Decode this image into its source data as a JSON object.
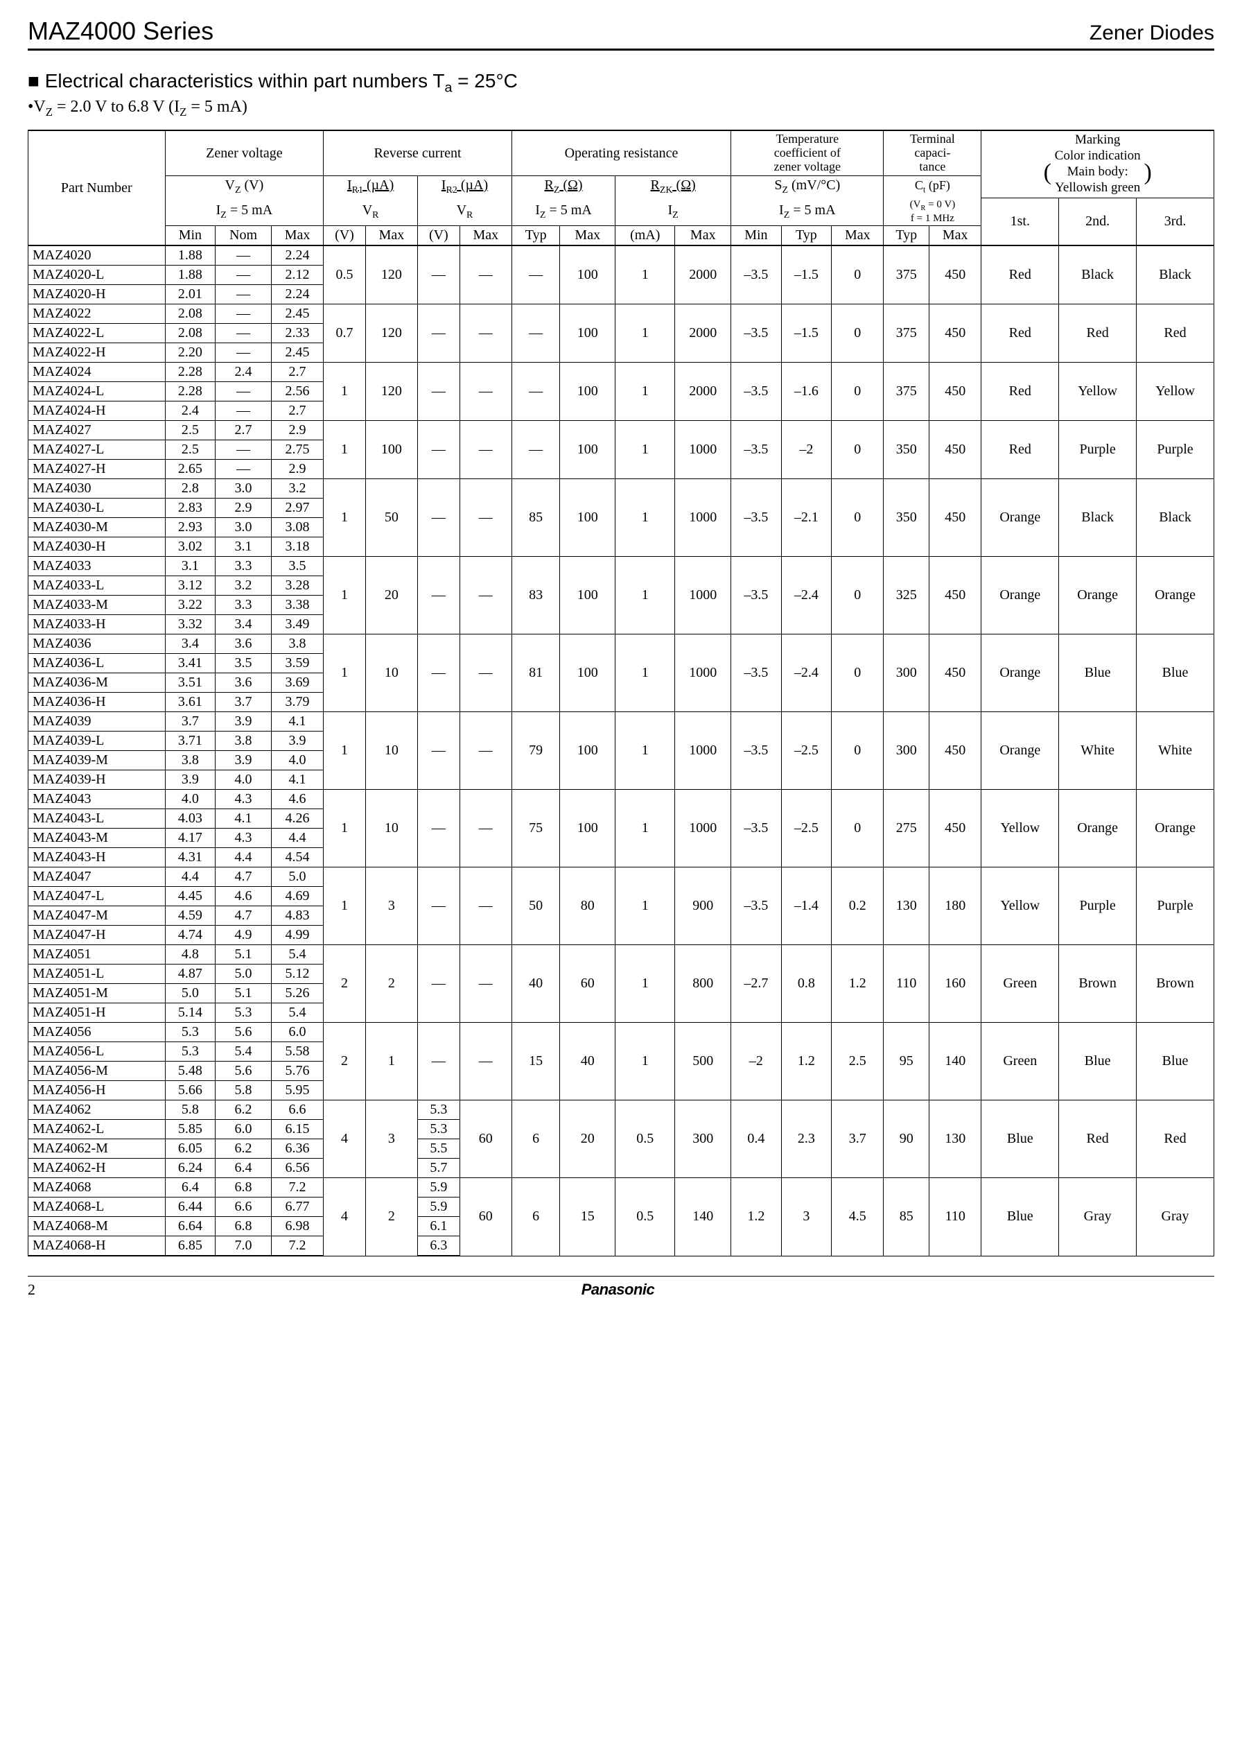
{
  "header": {
    "series": "MAZ4000 Series",
    "category": "Zener Diodes"
  },
  "section": {
    "title_html": "■ Electrical characteristics within part numbers  T<sub>a</sub> = 25°C",
    "condition_html": "•V<sub>Z</sub> = 2.0 V to 6.8 V (I<sub>Z</sub> = 5 mA)"
  },
  "column_headers": {
    "part_number": "Part Number",
    "zener_voltage": "Zener voltage",
    "reverse_current": "Reverse current",
    "operating_resistance": "Operating resistance",
    "temp_coeff": "Temperature coefficient of zener voltage",
    "term_cap": "Terminal capaci-tance",
    "marking_block": "Marking<br>Color indication<br>Main body:<br>Yellowish green",
    "vz_html": "V<sub>Z</sub> (V)",
    "iz5_html": "I<sub>Z</sub> = 5 mA",
    "ir1_html": "I<sub>R1</sub> (µA)",
    "ir2_html": "I<sub>R2</sub> (µA)",
    "vr_html": "V<sub>R</sub>",
    "rz_html": "R<sub>Z</sub> (Ω)",
    "rzk_html": "R<sub>ZK</sub> (Ω)",
    "iz_html": "I<sub>Z</sub>",
    "sz_html": "S<sub>Z</sub> (mV/°C)",
    "ct_html": "C<sub>t</sub> (pF)",
    "ct_cond_html": "(V<sub>R</sub> = 0 V)<br>f = 1 MHz",
    "min": "Min",
    "nom": "Nom",
    "max": "Max",
    "typ": "Typ",
    "v_unit": "(V)",
    "ma_unit": "(mA)",
    "first": "1st.",
    "second": "2nd.",
    "third": "3rd."
  },
  "groups": [
    {
      "shared": {
        "ir1_vr": "0.5",
        "ir1_max": "120",
        "ir2_vr": "—",
        "ir2_max": "—",
        "rz_typ": "—",
        "rz_max": "100",
        "rzk_iz": "1",
        "rzk_max": "2000",
        "sz_min": "–3.5",
        "sz_typ": "–1.5",
        "sz_max": "0",
        "ct_typ": "375",
        "ct_max": "450",
        "c1": "Red",
        "c2": "Black",
        "c3": "Black"
      },
      "rows": [
        {
          "pn": "MAZ4020",
          "min": "1.88",
          "nom": "—",
          "max": "2.24"
        },
        {
          "pn": "MAZ4020-L",
          "min": "1.88",
          "nom": "—",
          "max": "2.12"
        },
        {
          "pn": "MAZ4020-H",
          "min": "2.01",
          "nom": "—",
          "max": "2.24"
        }
      ]
    },
    {
      "shared": {
        "ir1_vr": "0.7",
        "ir1_max": "120",
        "ir2_vr": "—",
        "ir2_max": "—",
        "rz_typ": "—",
        "rz_max": "100",
        "rzk_iz": "1",
        "rzk_max": "2000",
        "sz_min": "–3.5",
        "sz_typ": "–1.5",
        "sz_max": "0",
        "ct_typ": "375",
        "ct_max": "450",
        "c1": "Red",
        "c2": "Red",
        "c3": "Red"
      },
      "rows": [
        {
          "pn": "MAZ4022",
          "min": "2.08",
          "nom": "—",
          "max": "2.45"
        },
        {
          "pn": "MAZ4022-L",
          "min": "2.08",
          "nom": "—",
          "max": "2.33"
        },
        {
          "pn": "MAZ4022-H",
          "min": "2.20",
          "nom": "—",
          "max": "2.45"
        }
      ]
    },
    {
      "shared": {
        "ir1_vr": "1",
        "ir1_max": "120",
        "ir2_vr": "—",
        "ir2_max": "—",
        "rz_typ": "—",
        "rz_max": "100",
        "rzk_iz": "1",
        "rzk_max": "2000",
        "sz_min": "–3.5",
        "sz_typ": "–1.6",
        "sz_max": "0",
        "ct_typ": "375",
        "ct_max": "450",
        "c1": "Red",
        "c2": "Yellow",
        "c3": "Yellow"
      },
      "rows": [
        {
          "pn": "MAZ4024",
          "min": "2.28",
          "nom": "2.4",
          "max": "2.7"
        },
        {
          "pn": "MAZ4024-L",
          "min": "2.28",
          "nom": "—",
          "max": "2.56"
        },
        {
          "pn": "MAZ4024-H",
          "min": "2.4",
          "nom": "—",
          "max": "2.7"
        }
      ]
    },
    {
      "shared": {
        "ir1_vr": "1",
        "ir1_max": "100",
        "ir2_vr": "—",
        "ir2_max": "—",
        "rz_typ": "—",
        "rz_max": "100",
        "rzk_iz": "1",
        "rzk_max": "1000",
        "sz_min": "–3.5",
        "sz_typ": "–2",
        "sz_max": "0",
        "ct_typ": "350",
        "ct_max": "450",
        "c1": "Red",
        "c2": "Purple",
        "c3": "Purple"
      },
      "rows": [
        {
          "pn": "MAZ4027",
          "min": "2.5",
          "nom": "2.7",
          "max": "2.9"
        },
        {
          "pn": "MAZ4027-L",
          "min": "2.5",
          "nom": "—",
          "max": "2.75"
        },
        {
          "pn": "MAZ4027-H",
          "min": "2.65",
          "nom": "—",
          "max": "2.9"
        }
      ]
    },
    {
      "shared": {
        "ir1_vr": "1",
        "ir1_max": "50",
        "ir2_vr": "—",
        "ir2_max": "—",
        "rz_typ": "85",
        "rz_max": "100",
        "rzk_iz": "1",
        "rzk_max": "1000",
        "sz_min": "–3.5",
        "sz_typ": "–2.1",
        "sz_max": "0",
        "ct_typ": "350",
        "ct_max": "450",
        "c1": "Orange",
        "c2": "Black",
        "c3": "Black"
      },
      "rows": [
        {
          "pn": "MAZ4030",
          "min": "2.8",
          "nom": "3.0",
          "max": "3.2"
        },
        {
          "pn": "MAZ4030-L",
          "min": "2.83",
          "nom": "2.9",
          "max": "2.97"
        },
        {
          "pn": "MAZ4030-M",
          "min": "2.93",
          "nom": "3.0",
          "max": "3.08"
        },
        {
          "pn": "MAZ4030-H",
          "min": "3.02",
          "nom": "3.1",
          "max": "3.18"
        }
      ]
    },
    {
      "shared": {
        "ir1_vr": "1",
        "ir1_max": "20",
        "ir2_vr": "—",
        "ir2_max": "—",
        "rz_typ": "83",
        "rz_max": "100",
        "rzk_iz": "1",
        "rzk_max": "1000",
        "sz_min": "–3.5",
        "sz_typ": "–2.4",
        "sz_max": "0",
        "ct_typ": "325",
        "ct_max": "450",
        "c1": "Orange",
        "c2": "Orange",
        "c3": "Orange"
      },
      "rows": [
        {
          "pn": "MAZ4033",
          "min": "3.1",
          "nom": "3.3",
          "max": "3.5"
        },
        {
          "pn": "MAZ4033-L",
          "min": "3.12",
          "nom": "3.2",
          "max": "3.28"
        },
        {
          "pn": "MAZ4033-M",
          "min": "3.22",
          "nom": "3.3",
          "max": "3.38"
        },
        {
          "pn": "MAZ4033-H",
          "min": "3.32",
          "nom": "3.4",
          "max": "3.49"
        }
      ]
    },
    {
      "shared": {
        "ir1_vr": "1",
        "ir1_max": "10",
        "ir2_vr": "—",
        "ir2_max": "—",
        "rz_typ": "81",
        "rz_max": "100",
        "rzk_iz": "1",
        "rzk_max": "1000",
        "sz_min": "–3.5",
        "sz_typ": "–2.4",
        "sz_max": "0",
        "ct_typ": "300",
        "ct_max": "450",
        "c1": "Orange",
        "c2": "Blue",
        "c3": "Blue"
      },
      "rows": [
        {
          "pn": "MAZ4036",
          "min": "3.4",
          "nom": "3.6",
          "max": "3.8"
        },
        {
          "pn": "MAZ4036-L",
          "min": "3.41",
          "nom": "3.5",
          "max": "3.59"
        },
        {
          "pn": "MAZ4036-M",
          "min": "3.51",
          "nom": "3.6",
          "max": "3.69"
        },
        {
          "pn": "MAZ4036-H",
          "min": "3.61",
          "nom": "3.7",
          "max": "3.79"
        }
      ]
    },
    {
      "shared": {
        "ir1_vr": "1",
        "ir1_max": "10",
        "ir2_vr": "—",
        "ir2_max": "—",
        "rz_typ": "79",
        "rz_max": "100",
        "rzk_iz": "1",
        "rzk_max": "1000",
        "sz_min": "–3.5",
        "sz_typ": "–2.5",
        "sz_max": "0",
        "ct_typ": "300",
        "ct_max": "450",
        "c1": "Orange",
        "c2": "White",
        "c3": "White"
      },
      "rows": [
        {
          "pn": "MAZ4039",
          "min": "3.7",
          "nom": "3.9",
          "max": "4.1"
        },
        {
          "pn": "MAZ4039-L",
          "min": "3.71",
          "nom": "3.8",
          "max": "3.9"
        },
        {
          "pn": "MAZ4039-M",
          "min": "3.8",
          "nom": "3.9",
          "max": "4.0"
        },
        {
          "pn": "MAZ4039-H",
          "min": "3.9",
          "nom": "4.0",
          "max": "4.1"
        }
      ]
    },
    {
      "shared": {
        "ir1_vr": "1",
        "ir1_max": "10",
        "ir2_vr": "—",
        "ir2_max": "—",
        "rz_typ": "75",
        "rz_max": "100",
        "rzk_iz": "1",
        "rzk_max": "1000",
        "sz_min": "–3.5",
        "sz_typ": "–2.5",
        "sz_max": "0",
        "ct_typ": "275",
        "ct_max": "450",
        "c1": "Yellow",
        "c2": "Orange",
        "c3": "Orange"
      },
      "rows": [
        {
          "pn": "MAZ4043",
          "min": "4.0",
          "nom": "4.3",
          "max": "4.6"
        },
        {
          "pn": "MAZ4043-L",
          "min": "4.03",
          "nom": "4.1",
          "max": "4.26"
        },
        {
          "pn": "MAZ4043-M",
          "min": "4.17",
          "nom": "4.3",
          "max": "4.4"
        },
        {
          "pn": "MAZ4043-H",
          "min": "4.31",
          "nom": "4.4",
          "max": "4.54"
        }
      ]
    },
    {
      "shared": {
        "ir1_vr": "1",
        "ir1_max": "3",
        "ir2_vr": "—",
        "ir2_max": "—",
        "rz_typ": "50",
        "rz_max": "80",
        "rzk_iz": "1",
        "rzk_max": "900",
        "sz_min": "–3.5",
        "sz_typ": "–1.4",
        "sz_max": "0.2",
        "ct_typ": "130",
        "ct_max": "180",
        "c1": "Yellow",
        "c2": "Purple",
        "c3": "Purple"
      },
      "rows": [
        {
          "pn": "MAZ4047",
          "min": "4.4",
          "nom": "4.7",
          "max": "5.0"
        },
        {
          "pn": "MAZ4047-L",
          "min": "4.45",
          "nom": "4.6",
          "max": "4.69"
        },
        {
          "pn": "MAZ4047-M",
          "min": "4.59",
          "nom": "4.7",
          "max": "4.83"
        },
        {
          "pn": "MAZ4047-H",
          "min": "4.74",
          "nom": "4.9",
          "max": "4.99"
        }
      ]
    },
    {
      "shared": {
        "ir1_vr": "2",
        "ir1_max": "2",
        "ir2_vr": "—",
        "ir2_max": "—",
        "rz_typ": "40",
        "rz_max": "60",
        "rzk_iz": "1",
        "rzk_max": "800",
        "sz_min": "–2.7",
        "sz_typ": "0.8",
        "sz_max": "1.2",
        "ct_typ": "110",
        "ct_max": "160",
        "c1": "Green",
        "c2": "Brown",
        "c3": "Brown"
      },
      "rows": [
        {
          "pn": "MAZ4051",
          "min": "4.8",
          "nom": "5.1",
          "max": "5.4"
        },
        {
          "pn": "MAZ4051-L",
          "min": "4.87",
          "nom": "5.0",
          "max": "5.12"
        },
        {
          "pn": "MAZ4051-M",
          "min": "5.0",
          "nom": "5.1",
          "max": "5.26"
        },
        {
          "pn": "MAZ4051-H",
          "min": "5.14",
          "nom": "5.3",
          "max": "5.4"
        }
      ]
    },
    {
      "shared": {
        "ir1_vr": "2",
        "ir1_max": "1",
        "ir2_vr": "—",
        "ir2_max": "—",
        "rz_typ": "15",
        "rz_max": "40",
        "rzk_iz": "1",
        "rzk_max": "500",
        "sz_min": "–2",
        "sz_typ": "1.2",
        "sz_max": "2.5",
        "ct_typ": "95",
        "ct_max": "140",
        "c1": "Green",
        "c2": "Blue",
        "c3": "Blue"
      },
      "rows": [
        {
          "pn": "MAZ4056",
          "min": "5.3",
          "nom": "5.6",
          "max": "6.0"
        },
        {
          "pn": "MAZ4056-L",
          "min": "5.3",
          "nom": "5.4",
          "max": "5.58"
        },
        {
          "pn": "MAZ4056-M",
          "min": "5.48",
          "nom": "5.6",
          "max": "5.76"
        },
        {
          "pn": "MAZ4056-H",
          "min": "5.66",
          "nom": "5.8",
          "max": "5.95"
        }
      ]
    },
    {
      "shared": {
        "ir1_vr": "4",
        "ir1_max": "3",
        "ir2_max": "60",
        "rz_typ": "6",
        "rz_max": "20",
        "rzk_iz": "0.5",
        "rzk_max": "300",
        "sz_min": "0.4",
        "sz_typ": "2.3",
        "sz_max": "3.7",
        "ct_typ": "90",
        "ct_max": "130",
        "c1": "Blue",
        "c2": "Red",
        "c3": "Red"
      },
      "rows": [
        {
          "pn": "MAZ4062",
          "min": "5.8",
          "nom": "6.2",
          "max": "6.6",
          "ir2_vr": "5.3"
        },
        {
          "pn": "MAZ4062-L",
          "min": "5.85",
          "nom": "6.0",
          "max": "6.15",
          "ir2_vr": "5.3"
        },
        {
          "pn": "MAZ4062-M",
          "min": "6.05",
          "nom": "6.2",
          "max": "6.36",
          "ir2_vr": "5.5"
        },
        {
          "pn": "MAZ4062-H",
          "min": "6.24",
          "nom": "6.4",
          "max": "6.56",
          "ir2_vr": "5.7"
        }
      ]
    },
    {
      "shared": {
        "ir1_vr": "4",
        "ir1_max": "2",
        "ir2_max": "60",
        "rz_typ": "6",
        "rz_max": "15",
        "rzk_iz": "0.5",
        "rzk_max": "140",
        "sz_min": "1.2",
        "sz_typ": "3",
        "sz_max": "4.5",
        "ct_typ": "85",
        "ct_max": "110",
        "c1": "Blue",
        "c2": "Gray",
        "c3": "Gray"
      },
      "rows": [
        {
          "pn": "MAZ4068",
          "min": "6.4",
          "nom": "6.8",
          "max": "7.2",
          "ir2_vr": "5.9"
        },
        {
          "pn": "MAZ4068-L",
          "min": "6.44",
          "nom": "6.6",
          "max": "6.77",
          "ir2_vr": "5.9"
        },
        {
          "pn": "MAZ4068-M",
          "min": "6.64",
          "nom": "6.8",
          "max": "6.98",
          "ir2_vr": "6.1"
        },
        {
          "pn": "MAZ4068-H",
          "min": "6.85",
          "nom": "7.0",
          "max": "7.2",
          "ir2_vr": "6.3"
        }
      ]
    }
  ],
  "footer": {
    "page": "2",
    "brand": "Panasonic"
  }
}
